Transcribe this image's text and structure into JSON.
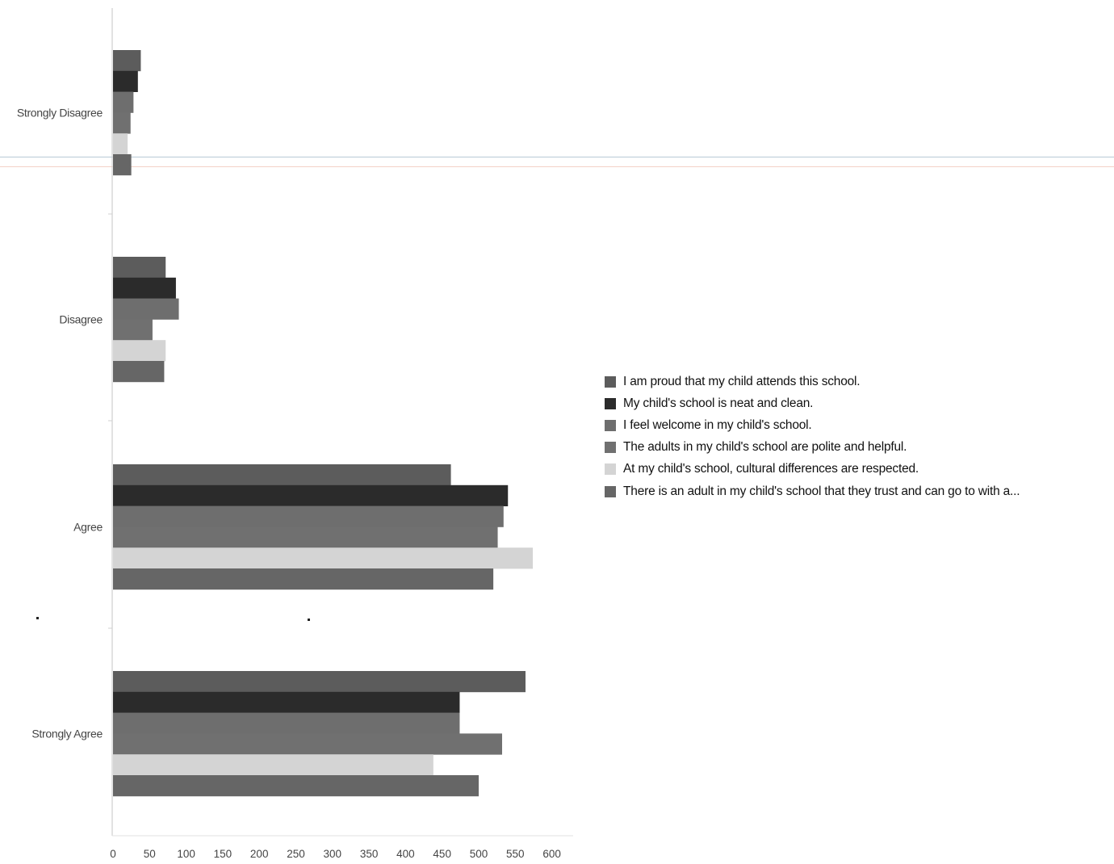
{
  "chart_data": {
    "type": "bar",
    "orientation": "horizontal",
    "categories": [
      "Strongly Disagree",
      "Disagree",
      "Agree",
      "Strongly Agree"
    ],
    "series": [
      {
        "name": "I am proud that my child attends this school.",
        "color": "#5c5c5c",
        "values": [
          38,
          72,
          462,
          564
        ]
      },
      {
        "name": "My child's school is neat and clean.",
        "color": "#2b2b2b",
        "values": [
          34,
          86,
          540,
          474
        ]
      },
      {
        "name": "I feel welcome in my child's school.",
        "color": "#6e6e6e",
        "values": [
          28,
          90,
          534,
          474
        ]
      },
      {
        "name": "The adults in my child's school are polite and helpful.",
        "color": "#707070",
        "values": [
          24,
          54,
          526,
          532
        ]
      },
      {
        "name": "At my child's school, cultural differences are respected.",
        "color": "#d4d4d4",
        "values": [
          20,
          72,
          574,
          438
        ]
      },
      {
        "name": "There is an adult in my child's school that they trust and can go to with a...",
        "color": "#666666",
        "values": [
          25,
          70,
          520,
          500
        ]
      }
    ],
    "xticks": [
      0,
      50,
      100,
      150,
      200,
      250,
      300,
      350,
      400,
      450,
      500,
      550,
      600
    ],
    "xlim": [
      0,
      630
    ],
    "legend_position": "right",
    "grid": false
  }
}
